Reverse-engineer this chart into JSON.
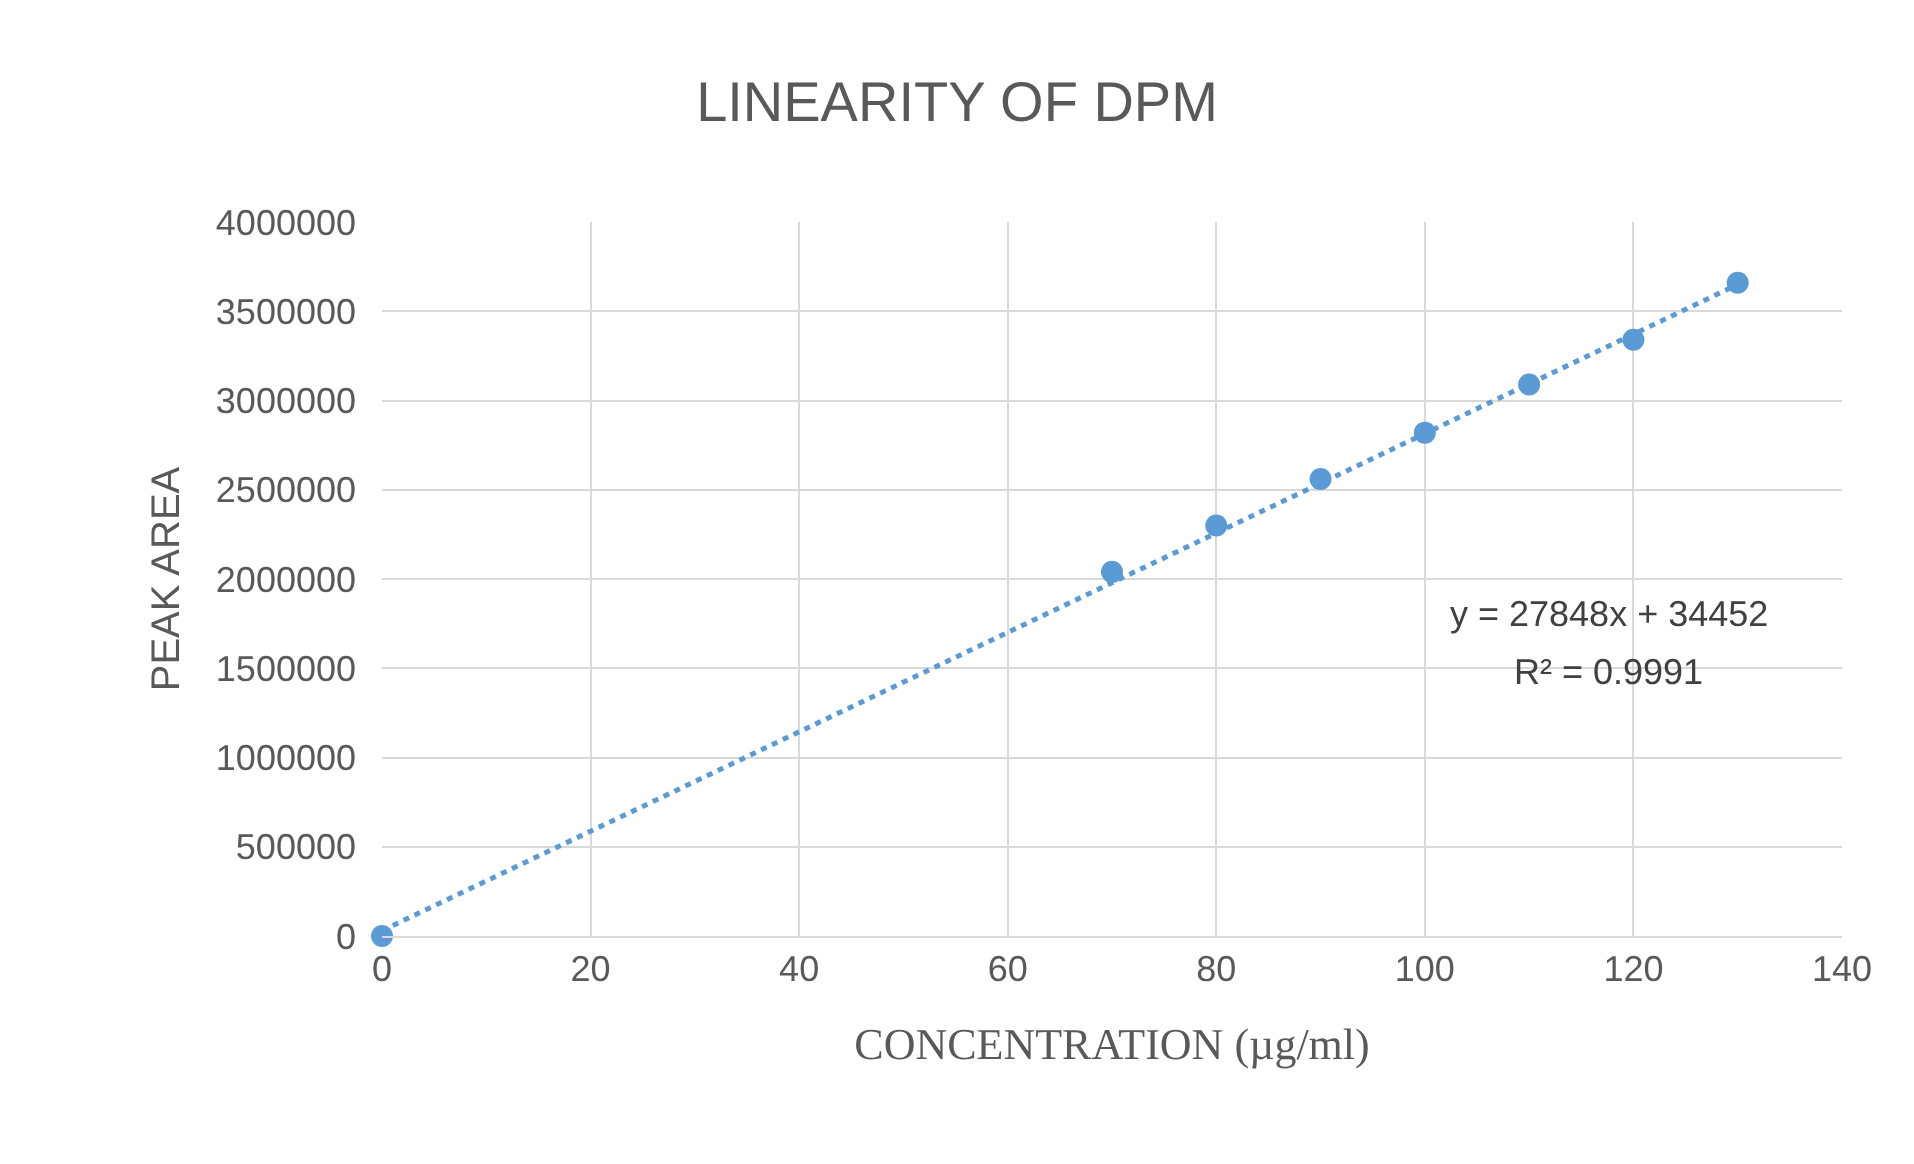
{
  "chart_data": {
    "type": "scatter",
    "title": "LINEARITY OF DPM",
    "xlabel": "CONCENTRATION (µg/ml)",
    "ylabel": "PEAK AREA",
    "x": [
      0,
      70,
      80,
      90,
      100,
      110,
      120,
      130
    ],
    "series": [
      {
        "color": "#5b9bd5",
        "marker": "circle",
        "values": [
          0,
          2040000,
          2300000,
          2560000,
          2820000,
          3090000,
          3340000,
          3660000
        ]
      },
      {
        "type": "line",
        "color": "#5b9bd5",
        "line_style": "dotted",
        "marker": "none",
        "x": [
          0,
          130
        ],
        "values": [
          30000,
          3650000
        ]
      }
    ],
    "xlim": [
      0,
      140
    ],
    "xticks": [
      0,
      20,
      40,
      60,
      80,
      100,
      120,
      140
    ],
    "ylim": [
      0,
      4000000
    ],
    "yticks": [
      0,
      500000,
      1000000,
      1500000,
      2000000,
      2500000,
      3000000,
      3500000,
      4000000
    ],
    "grid": true,
    "annotations": [
      "y = 27848x + 34452",
      "R² = 0.9991"
    ]
  }
}
